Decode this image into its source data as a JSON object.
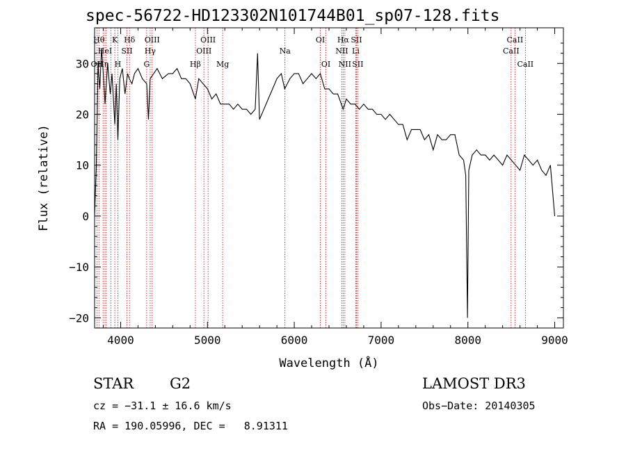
{
  "title": "spec-56722-HD123302N101744B01_sp07-128.fits",
  "chart_data": {
    "type": "line",
    "xlabel": "Wavelength (Å)",
    "ylabel": "Flux (relative)",
    "xlim": [
      3700,
      9100
    ],
    "ylim": [
      -22,
      37
    ],
    "xticks": [
      4000,
      5000,
      6000,
      7000,
      8000,
      9000
    ],
    "yticks": [
      -20,
      -10,
      0,
      10,
      20,
      30
    ],
    "grid": false,
    "line_color": "#000000",
    "marker_color": "#cc0000",
    "series": [
      {
        "x": [
          3700,
          3720,
          3740,
          3760,
          3780,
          3800,
          3820,
          3850,
          3880,
          3900,
          3933,
          3950,
          3968,
          3990,
          4020,
          4050,
          4080,
          4100,
          4130,
          4160,
          4200,
          4250,
          4300,
          4320,
          4340,
          4380,
          4420,
          4480,
          4550,
          4600,
          4650,
          4700,
          4750,
          4800,
          4861,
          4900,
          4950,
          5000,
          5050,
          5100,
          5150,
          5200,
          5250,
          5300,
          5350,
          5400,
          5450,
          5500,
          5550,
          5577,
          5600,
          5650,
          5700,
          5750,
          5800,
          5850,
          5890,
          5950,
          6000,
          6050,
          6100,
          6150,
          6200,
          6250,
          6300,
          6350,
          6400,
          6450,
          6500,
          6563,
          6600,
          6650,
          6700,
          6750,
          6800,
          6850,
          6900,
          6950,
          7000,
          7050,
          7100,
          7150,
          7200,
          7250,
          7300,
          7350,
          7400,
          7450,
          7500,
          7550,
          7600,
          7650,
          7700,
          7750,
          7800,
          7850,
          7900,
          7950,
          7975,
          7995,
          8010,
          8050,
          8100,
          8150,
          8200,
          8250,
          8300,
          8350,
          8400,
          8450,
          8500,
          8550,
          8600,
          8650,
          8700,
          8750,
          8800,
          8850,
          8900,
          8950,
          9000
        ],
        "y": [
          0,
          10,
          30,
          25,
          33,
          28,
          22,
          30,
          24,
          28,
          18,
          26,
          15,
          27,
          29,
          24,
          28,
          27,
          26,
          28,
          29,
          27,
          26,
          19,
          27,
          28,
          29,
          27,
          28,
          28,
          29,
          27,
          27,
          26,
          23,
          27,
          26,
          25,
          23,
          24,
          22,
          22,
          22,
          21,
          22,
          21,
          21,
          20,
          21,
          32,
          19,
          21,
          23,
          25,
          27,
          28,
          25,
          27,
          28,
          28,
          26,
          27,
          28,
          27,
          28,
          25,
          25,
          24,
          24,
          21,
          23,
          22,
          22,
          21,
          22,
          21,
          21,
          20,
          20,
          19,
          20,
          19,
          18,
          18,
          15,
          17,
          17,
          17,
          15,
          16,
          13,
          16,
          15,
          15,
          16,
          16,
          12,
          11,
          8,
          -20,
          9,
          12,
          13,
          12,
          12,
          11,
          12,
          11,
          10,
          12,
          11,
          10,
          9,
          12,
          11,
          10,
          11,
          9,
          8,
          10,
          0
        ]
      }
    ],
    "lines": [
      {
        "wl": 3727,
        "label": "OII",
        "row": 3
      },
      {
        "wl": 3750,
        "label": "Hθ",
        "row": 1
      },
      {
        "wl": 3798,
        "label": "Hη",
        "row": 3
      },
      {
        "wl": 3820,
        "label": "HeI",
        "row": 2
      },
      {
        "wl": 3835,
        "label": "",
        "row": 0
      },
      {
        "wl": 3889,
        "label": "",
        "row": 0
      },
      {
        "wl": 3933,
        "label": "K",
        "row": 1
      },
      {
        "wl": 3968,
        "label": "H",
        "row": 3
      },
      {
        "wl": 4072,
        "label": "SII",
        "row": 2
      },
      {
        "wl": 4102,
        "label": "Hδ",
        "row": 1
      },
      {
        "wl": 4300,
        "label": "G",
        "row": 3
      },
      {
        "wl": 4340,
        "label": "Hγ",
        "row": 2
      },
      {
        "wl": 4363,
        "label": "OIII",
        "row": 1
      },
      {
        "wl": 4861,
        "label": "Hβ",
        "row": 3
      },
      {
        "wl": 4959,
        "label": "OIII",
        "row": 2
      },
      {
        "wl": 5007,
        "label": "OIII",
        "row": 1
      },
      {
        "wl": 5175,
        "label": "Mg",
        "row": 3
      },
      {
        "wl": 5893,
        "label": "Na",
        "row": 2
      },
      {
        "wl": 6300,
        "label": "OI",
        "row": 1
      },
      {
        "wl": 6364,
        "label": "OI",
        "row": 3
      },
      {
        "wl": 6548,
        "label": "NII",
        "row": 2
      },
      {
        "wl": 6563,
        "label": "Hα",
        "row": 1
      },
      {
        "wl": 6583,
        "label": "NII",
        "row": 3
      },
      {
        "wl": 6708,
        "label": "Li",
        "row": 2
      },
      {
        "wl": 6716,
        "label": "SII",
        "row": 1
      },
      {
        "wl": 6731,
        "label": "SII",
        "row": 3
      },
      {
        "wl": 8498,
        "label": "CaII",
        "row": 2
      },
      {
        "wl": 8542,
        "label": "CaII",
        "row": 1
      },
      {
        "wl": 8662,
        "label": "CaII",
        "row": 3
      }
    ]
  },
  "info": {
    "object": "STAR",
    "subclass": "G2",
    "survey": "LAMOST DR3",
    "cz": "cz = −31.1 ± 16.6 km/s",
    "obs_date": "Obs−Date: 20140305",
    "coords": "RA = 190.05996, DEC =   8.91311"
  }
}
